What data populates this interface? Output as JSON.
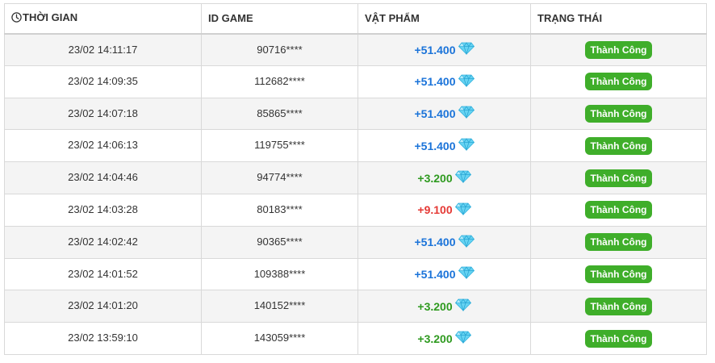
{
  "table": {
    "headers": {
      "time": "THỜI GIAN",
      "id": "ID GAME",
      "item": "VẬT PHẨM",
      "status": "TRẠNG THÁI"
    },
    "icons": {
      "time_header": "clock-icon",
      "item": "diamond-icon"
    },
    "colors": {
      "blue": "#1a73d9",
      "green": "#2e9a1f",
      "red": "#e53935",
      "badge": "#3fae2a",
      "gem": "#5fd0f0"
    },
    "rows": [
      {
        "time": "23/02 14:11:17",
        "id": "90716****",
        "amount": "+51.400",
        "tone": "blue",
        "status": "Thành Công"
      },
      {
        "time": "23/02 14:09:35",
        "id": "112682****",
        "amount": "+51.400",
        "tone": "blue",
        "status": "Thành Công"
      },
      {
        "time": "23/02 14:07:18",
        "id": "85865****",
        "amount": "+51.400",
        "tone": "blue",
        "status": "Thành Công"
      },
      {
        "time": "23/02 14:06:13",
        "id": "119755****",
        "amount": "+51.400",
        "tone": "blue",
        "status": "Thành Công"
      },
      {
        "time": "23/02 14:04:46",
        "id": "94774****",
        "amount": "+3.200",
        "tone": "green",
        "status": "Thành Công"
      },
      {
        "time": "23/02 14:03:28",
        "id": "80183****",
        "amount": "+9.100",
        "tone": "red",
        "status": "Thành Công"
      },
      {
        "time": "23/02 14:02:42",
        "id": "90365****",
        "amount": "+51.400",
        "tone": "blue",
        "status": "Thành Công"
      },
      {
        "time": "23/02 14:01:52",
        "id": "109388****",
        "amount": "+51.400",
        "tone": "blue",
        "status": "Thành Công"
      },
      {
        "time": "23/02 14:01:20",
        "id": "140152****",
        "amount": "+3.200",
        "tone": "green",
        "status": "Thành Công"
      },
      {
        "time": "23/02 13:59:10",
        "id": "143059****",
        "amount": "+3.200",
        "tone": "green",
        "status": "Thành Công"
      }
    ]
  }
}
